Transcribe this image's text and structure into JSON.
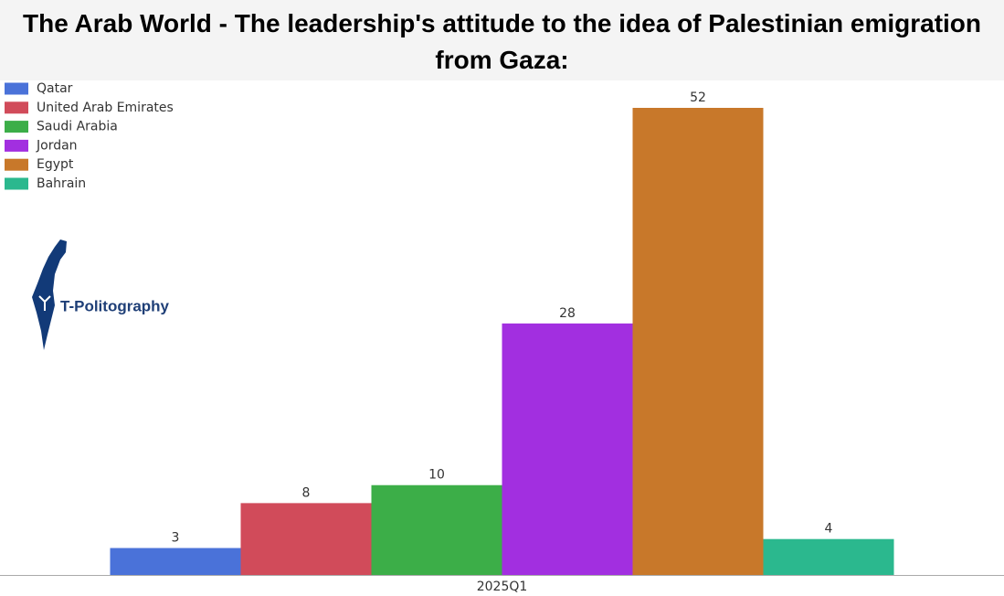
{
  "chart_data": {
    "type": "bar",
    "title": "The Arab World - The leadership's attitude to the idea of Palestinian emigration from Gaza:",
    "categories": [
      "2025Q1"
    ],
    "series": [
      {
        "name": "Qatar",
        "color": "#4a72d9",
        "values": [
          3
        ]
      },
      {
        "name": "United Arab Emirates",
        "color": "#d14b5a",
        "values": [
          8
        ]
      },
      {
        "name": "Saudi Arabia",
        "color": "#3cae48",
        "values": [
          10
        ]
      },
      {
        "name": "Jordan",
        "color": "#a22fe0",
        "values": [
          28
        ]
      },
      {
        "name": "Egypt",
        "color": "#c8782a",
        "values": [
          52
        ]
      },
      {
        "name": "Bahrain",
        "color": "#2bb88e",
        "values": [
          4
        ]
      }
    ],
    "legend": "top-left",
    "watermark": "T-Politography"
  }
}
